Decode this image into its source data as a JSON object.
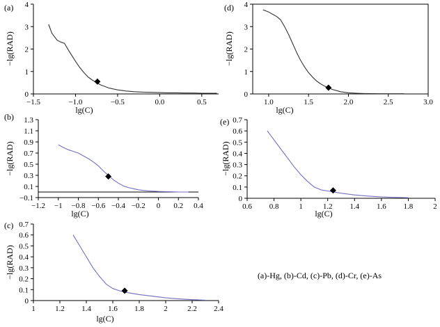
{
  "caption": "(a)-Hg, (b)-Cd, (c)-Pb, (d)-Cr, (e)-As",
  "chart_data": [
    {
      "id": "a",
      "panel_label": "(a)",
      "type": "line",
      "xlabel": "lg(C)",
      "ylabel": "−lg(RAD)",
      "xlim": [
        -1.5,
        0.7
      ],
      "ylim": [
        0,
        4
      ],
      "xticks": [
        -1.5,
        -1.0,
        -0.5,
        0.0,
        0.5
      ],
      "xtick_labels": [
        "−1.5",
        "−1.0",
        "−0.5",
        "0.0",
        "0.5"
      ],
      "yticks": [
        0,
        1,
        2,
        3,
        4
      ],
      "ytick_labels": [
        "0",
        "1",
        "2",
        "3",
        "4"
      ],
      "line_color": "#333333",
      "series": [
        {
          "name": "Hg",
          "x": [
            -1.32,
            -1.28,
            -1.22,
            -1.18,
            -1.13,
            -1.1,
            -1.05,
            -1.0,
            -0.95,
            -0.9,
            -0.85,
            -0.8,
            -0.75,
            -0.7,
            -0.6,
            -0.5,
            -0.4,
            -0.3,
            -0.2,
            -0.1,
            0.0,
            0.1,
            0.2,
            0.3,
            0.4,
            0.5,
            0.6,
            0.68
          ],
          "y": [
            3.1,
            2.7,
            2.4,
            2.32,
            2.25,
            2.05,
            1.75,
            1.45,
            1.18,
            0.95,
            0.75,
            0.62,
            0.5,
            0.4,
            0.26,
            0.18,
            0.13,
            0.1,
            0.08,
            0.07,
            0.06,
            0.05,
            0.05,
            0.04,
            0.04,
            0.03,
            0.03,
            0.03
          ]
        }
      ],
      "marker": {
        "x": -0.74,
        "y": 0.55
      }
    },
    {
      "id": "b",
      "panel_label": "(b)",
      "type": "line",
      "xlabel": "lg(C)",
      "ylabel": "−lg(RAD)",
      "xlim": [
        -1.2,
        0.4
      ],
      "ylim": [
        -0.1,
        1.3
      ],
      "xticks": [
        -1.2,
        -1.0,
        -0.8,
        -0.6,
        -0.4,
        -0.2,
        0,
        0.2,
        0.4
      ],
      "xtick_labels": [
        "−1.2",
        "−1",
        "−0.8",
        "−0.6",
        "−0.4",
        "−0.2",
        "0",
        "0.2",
        "0.4"
      ],
      "yticks": [
        -0.1,
        0.1,
        0.3,
        0.5,
        0.7,
        0.9,
        1.1,
        1.3
      ],
      "ytick_labels": [
        "−0.1",
        "0.1",
        "0.3",
        "0.5",
        "0.7",
        "0.9",
        "1.1",
        "1.3"
      ],
      "line_color": "#6f6fc0",
      "series": [
        {
          "name": "Cd",
          "x": [
            -1.0,
            -0.95,
            -0.9,
            -0.85,
            -0.8,
            -0.75,
            -0.7,
            -0.65,
            -0.6,
            -0.55,
            -0.5,
            -0.45,
            -0.4,
            -0.35,
            -0.3,
            -0.25,
            -0.2,
            -0.1,
            0,
            0.1,
            0.2,
            0.3
          ],
          "y": [
            0.85,
            0.8,
            0.76,
            0.73,
            0.7,
            0.65,
            0.6,
            0.54,
            0.47,
            0.38,
            0.3,
            0.22,
            0.16,
            0.11,
            0.08,
            0.06,
            0.04,
            0.02,
            0.01,
            0.005,
            0,
            0
          ]
        }
      ],
      "marker": {
        "x": -0.5,
        "y": 0.28
      }
    },
    {
      "id": "c",
      "panel_label": "(c)",
      "type": "line",
      "xlabel": "lg(C)",
      "ylabel": "−lg(RAD)",
      "xlim": [
        1,
        2.4
      ],
      "ylim": [
        0,
        0.7
      ],
      "xticks": [
        1,
        1.2,
        1.4,
        1.6,
        1.8,
        2,
        2.2,
        2.4
      ],
      "xtick_labels": [
        "1",
        "1.2",
        "1.4",
        "1.6",
        "1.8",
        "2",
        "2.2",
        "2.4"
      ],
      "yticks": [
        0,
        0.1,
        0.2,
        0.3,
        0.4,
        0.5,
        0.6,
        0.7
      ],
      "ytick_labels": [
        "0",
        "0.1",
        "0.2",
        "0.3",
        "0.4",
        "0.5",
        "0.6",
        "0.7"
      ],
      "line_color": "#6f6fc0",
      "series": [
        {
          "name": "Pb",
          "x": [
            1.3,
            1.35,
            1.4,
            1.45,
            1.5,
            1.55,
            1.6,
            1.65,
            1.7,
            1.75,
            1.8,
            1.9,
            2.0,
            2.1,
            2.2,
            2.3
          ],
          "y": [
            0.6,
            0.5,
            0.4,
            0.3,
            0.22,
            0.15,
            0.11,
            0.09,
            0.075,
            0.065,
            0.055,
            0.04,
            0.025,
            0.015,
            0.008,
            0.004
          ]
        }
      ],
      "marker": {
        "x": 1.69,
        "y": 0.09
      }
    },
    {
      "id": "d",
      "panel_label": "(d)",
      "type": "line",
      "xlabel": "lg(C)",
      "ylabel": "−lg(RAD)",
      "xlim": [
        0.8,
        3.0
      ],
      "ylim": [
        0,
        4
      ],
      "xticks": [
        1.0,
        1.5,
        2.0,
        2.5,
        3.0
      ],
      "xtick_labels": [
        "1.0",
        "1.5",
        "2.0",
        "2.5",
        "3.0"
      ],
      "yticks": [
        0,
        1,
        2,
        3,
        4
      ],
      "ytick_labels": [
        "0",
        "1",
        "2",
        "3",
        "4"
      ],
      "line_color": "#333333",
      "series": [
        {
          "name": "Cr",
          "x": [
            0.93,
            1.0,
            1.05,
            1.1,
            1.15,
            1.2,
            1.25,
            1.3,
            1.35,
            1.4,
            1.45,
            1.5,
            1.55,
            1.6,
            1.65,
            1.7,
            1.75,
            1.8,
            1.85,
            1.9,
            2.0,
            2.1,
            2.2,
            2.4,
            2.6,
            2.7
          ],
          "y": [
            3.75,
            3.65,
            3.55,
            3.45,
            3.3,
            3.0,
            2.65,
            2.25,
            1.85,
            1.5,
            1.2,
            0.95,
            0.75,
            0.58,
            0.45,
            0.35,
            0.27,
            0.2,
            0.15,
            0.1,
            0.05,
            0.03,
            0.02,
            0.01,
            0.01,
            0.01
          ]
        }
      ],
      "marker": {
        "x": 1.75,
        "y": 0.28
      }
    },
    {
      "id": "e",
      "panel_label": "(e)",
      "type": "line",
      "xlabel": "lg(C)",
      "ylabel": "−lg(RAD)",
      "xlim": [
        0.6,
        2.0
      ],
      "ylim": [
        0,
        0.7
      ],
      "xticks": [
        0.6,
        0.8,
        1.0,
        1.2,
        1.4,
        1.6,
        1.8,
        2.0
      ],
      "xtick_labels": [
        "0.6",
        "0.8",
        "1",
        "1.2",
        "1.4",
        "1.6",
        "1.8",
        "2"
      ],
      "yticks": [
        0,
        0.1,
        0.2,
        0.3,
        0.4,
        0.5,
        0.6,
        0.7
      ],
      "ytick_labels": [
        "0",
        "0.1",
        "0.2",
        "0.3",
        "0.4",
        "0.5",
        "0.6",
        "0.7"
      ],
      "line_color": "#6f6fc0",
      "series": [
        {
          "name": "As",
          "x": [
            0.75,
            0.8,
            0.85,
            0.9,
            0.95,
            1.0,
            1.05,
            1.1,
            1.15,
            1.2,
            1.25,
            1.3,
            1.4,
            1.5,
            1.6,
            1.7,
            1.8
          ],
          "y": [
            0.6,
            0.52,
            0.44,
            0.36,
            0.28,
            0.21,
            0.15,
            0.1,
            0.075,
            0.065,
            0.055,
            0.045,
            0.03,
            0.02,
            0.012,
            0.008,
            0.005
          ]
        }
      ],
      "marker": {
        "x": 1.24,
        "y": 0.07
      }
    }
  ]
}
